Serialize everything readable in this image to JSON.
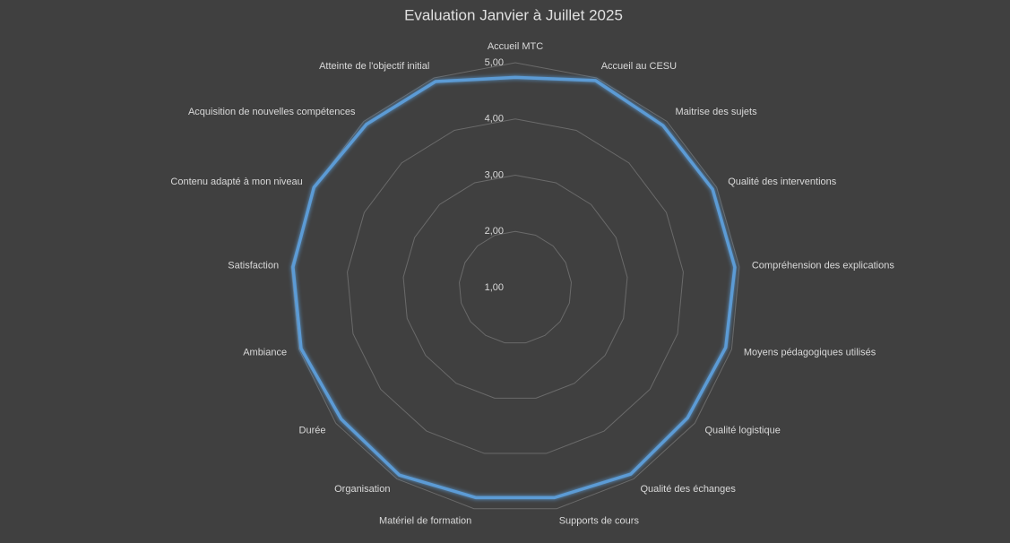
{
  "chart_data": {
    "type": "radar",
    "title": "Evaluation Janvier à Juillet 2025",
    "categories": [
      "Accueil MTC",
      "Accueil au CESU",
      "Maitrise des sujets",
      "Qualité des interventions",
      "Compréhension des explications",
      "Moyens pédagogiques utilisés",
      "Qualité logistique",
      "Qualité des échanges",
      "Supports de cours",
      "Matériel de formation",
      "Organisation",
      "Durée",
      "Ambiance",
      "Satisfaction",
      "Contenu adapté à mon niveau",
      "Acquisition de nouvelles compétences",
      "Atteinte de l'objectif initial"
    ],
    "series": [
      {
        "color": "#5b9bd5",
        "values": [
          4.74,
          4.95,
          4.9,
          4.92,
          4.92,
          4.89,
          4.84,
          4.9,
          4.8,
          4.8,
          4.92,
          4.88,
          4.96,
          4.97,
          5.0,
          4.93,
          4.93
        ]
      }
    ],
    "ylim": [
      1,
      5
    ],
    "yticks": [
      {
        "value": 1,
        "label": "1,00"
      },
      {
        "value": 2,
        "label": "2,00"
      },
      {
        "value": 3,
        "label": "3,00"
      },
      {
        "value": 4,
        "label": "4,00"
      },
      {
        "value": 5,
        "label": "5,00"
      }
    ],
    "grid": true
  }
}
